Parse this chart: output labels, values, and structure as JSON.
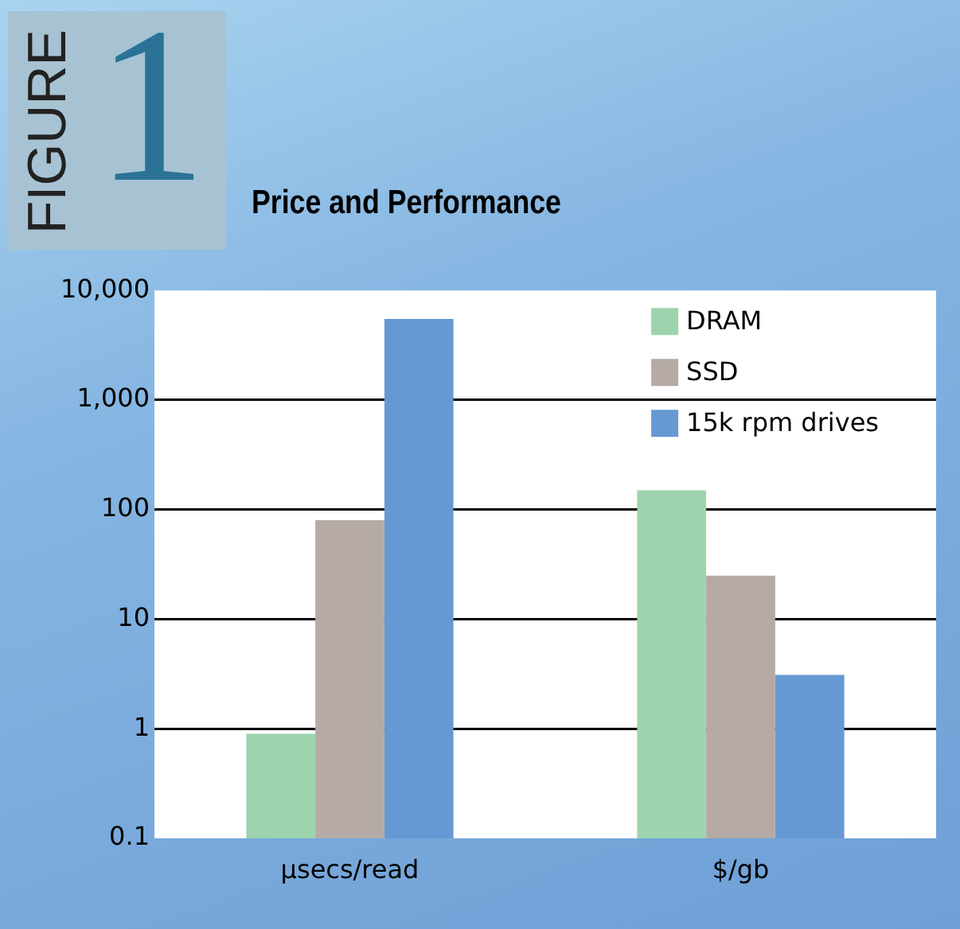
{
  "chart_data": {
    "type": "bar",
    "title": "Price and Performance",
    "annotations": [
      "FIGURE 1"
    ],
    "categories": [
      "µsecs/read",
      "$/gb"
    ],
    "series": [
      {
        "name": "DRAM",
        "color": "#9dd4ae",
        "values": [
          0.9,
          150
        ]
      },
      {
        "name": "SSD",
        "color": "#b5aaa5",
        "values": [
          80,
          25
        ]
      },
      {
        "name": "15k rpm drives",
        "color": "#6699d3",
        "values": [
          5500,
          3.1
        ]
      }
    ],
    "log": true,
    "ylim": [
      0.1,
      10000
    ],
    "yticks": [
      0.1,
      1,
      10,
      100,
      {
        "value": 1000,
        "label": "1,000"
      },
      {
        "value": 10000,
        "label": "10,000"
      }
    ],
    "grid": "y",
    "legend": "top right"
  }
}
